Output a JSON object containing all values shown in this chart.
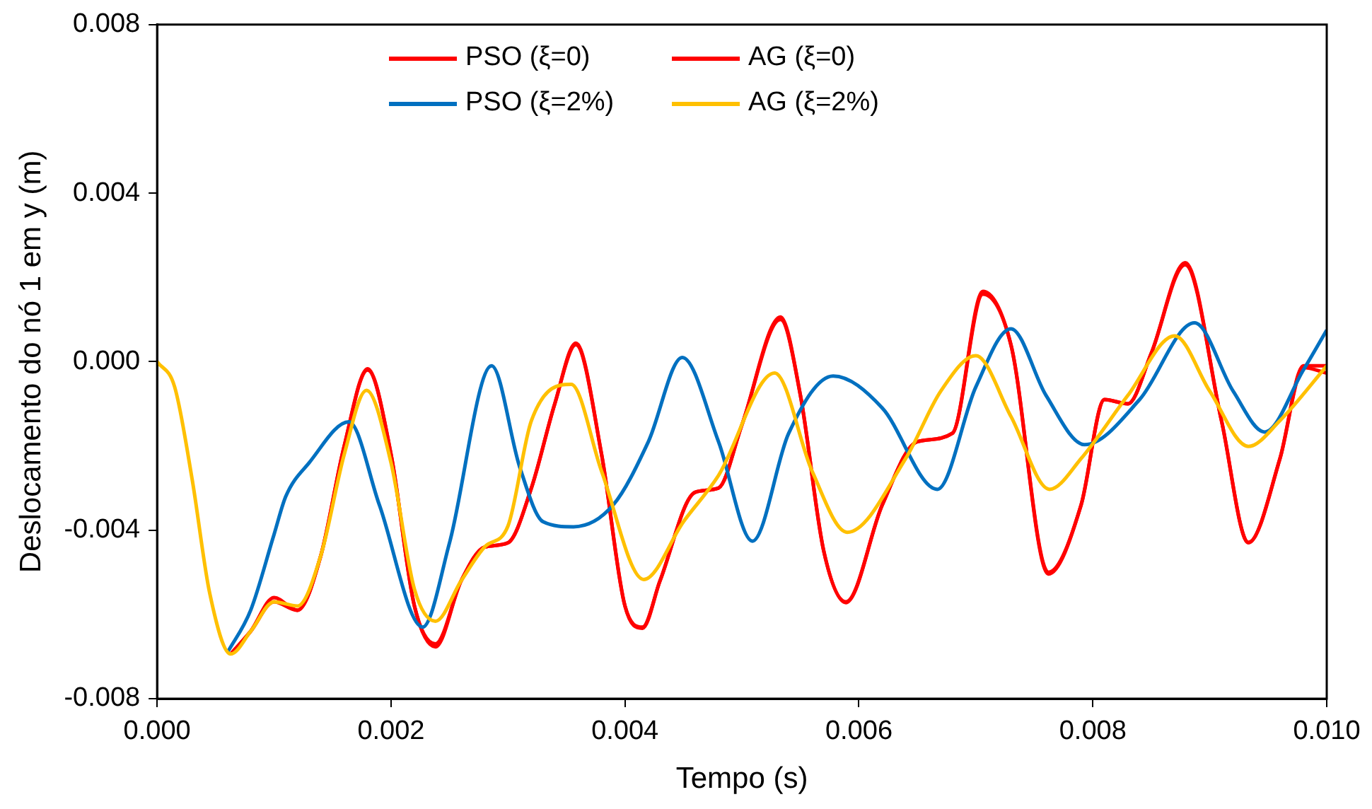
{
  "chart_data": {
    "type": "line",
    "xlabel": "Tempo (s)",
    "ylabel": "Deslocamento do nó 1 em y (m)",
    "xlim": [
      0,
      0.01
    ],
    "ylim": [
      -0.008,
      0.008
    ],
    "xticks": [
      {
        "value": 0,
        "label": "0.000"
      },
      {
        "value": 0.002,
        "label": "0.002"
      },
      {
        "value": 0.004,
        "label": "0.004"
      },
      {
        "value": 0.006,
        "label": "0.006"
      },
      {
        "value": 0.008,
        "label": "0.008"
      },
      {
        "value": 0.01,
        "label": "0.010"
      }
    ],
    "yticks": [
      {
        "value": -0.008,
        "label": "-0.008"
      },
      {
        "value": -0.004,
        "label": "-0.004"
      },
      {
        "value": 0,
        "label": "0.000"
      },
      {
        "value": 0.004,
        "label": "0.004"
      },
      {
        "value": 0.008,
        "label": "0.008"
      }
    ],
    "grid": false,
    "legend": "top",
    "marker": "none",
    "line_style": "solid",
    "series": [
      {
        "name": "PSO (ξ=0)",
        "color": "#ff0000",
        "x": [
          0.00063,
          0.0008,
          0.001,
          0.0012,
          0.0014,
          0.0016,
          0.0018,
          0.002,
          0.0022,
          0.00238,
          0.0026,
          0.0028,
          0.003,
          0.0032,
          0.0034,
          0.00358,
          0.0038,
          0.004,
          0.00415,
          0.0043,
          0.0046,
          0.0048,
          0.005,
          0.00533,
          0.0055,
          0.0057,
          0.00589,
          0.0062,
          0.0065,
          0.0068,
          0.00706,
          0.0073,
          0.00762,
          0.0079,
          0.0081,
          0.0083,
          0.0085,
          0.00879,
          0.0091,
          0.00933,
          0.0096,
          0.0098,
          0.01
        ],
        "values": [
          -0.00694,
          -0.0064,
          -0.0056,
          -0.0059,
          -0.0046,
          -0.002,
          -0.00017,
          -0.0022,
          -0.0058,
          -0.00677,
          -0.0052,
          -0.0044,
          -0.0043,
          -0.003,
          -0.001,
          0.00044,
          -0.0022,
          -0.0058,
          -0.00633,
          -0.0052,
          -0.0031,
          -0.003,
          -0.0015,
          0.00106,
          -0.0008,
          -0.0045,
          -0.00572,
          -0.0034,
          -0.0019,
          -0.0017,
          0.00167,
          0.0004,
          -0.00504,
          -0.0034,
          -0.0009,
          -0.001,
          0.0002,
          0.00235,
          -0.0014,
          -0.00429,
          -0.0023,
          -0.00014,
          -0.00027
        ]
      },
      {
        "name": "AG (ξ=0)",
        "color": "#ff0000",
        "x": [
          0.00063,
          0.0008,
          0.001,
          0.0012,
          0.0014,
          0.0016,
          0.0018,
          0.002,
          0.0022,
          0.00238,
          0.0026,
          0.0028,
          0.003,
          0.0032,
          0.0034,
          0.00358,
          0.0038,
          0.004,
          0.00415,
          0.0043,
          0.0046,
          0.0048,
          0.005,
          0.00533,
          0.0055,
          0.0057,
          0.00589,
          0.0062,
          0.0065,
          0.0068,
          0.00706,
          0.0073,
          0.00762,
          0.0079,
          0.0081,
          0.0083,
          0.0085,
          0.00879,
          0.0091,
          0.00933,
          0.0096,
          0.0098,
          0.01
        ],
        "values": [
          -0.00694,
          -0.0064,
          -0.0057,
          -0.0059,
          -0.0046,
          -0.002,
          -0.0002,
          -0.0022,
          -0.0058,
          -0.0067,
          -0.0052,
          -0.0044,
          -0.0043,
          -0.003,
          -0.001,
          0.0004,
          -0.0022,
          -0.0058,
          -0.0063,
          -0.0052,
          -0.0031,
          -0.003,
          -0.0015,
          0.001,
          -0.0008,
          -0.0045,
          -0.0057,
          -0.0034,
          -0.0019,
          -0.0017,
          0.0016,
          0.0004,
          -0.005,
          -0.0034,
          -0.0009,
          -0.001,
          0.0002,
          0.0023,
          -0.0014,
          -0.0043,
          -0.0023,
          -0.0001,
          -0.0001
        ]
      },
      {
        "name": "PSO (ξ=2%)",
        "color": "#0070c0",
        "x": [
          0.0006,
          0.0008,
          0.001,
          0.0011,
          0.0013,
          0.00164,
          0.0019,
          0.00227,
          0.0025,
          0.00286,
          0.0031,
          0.0033,
          0.00356,
          0.0039,
          0.0042,
          0.00449,
          0.0048,
          0.00509,
          0.0054,
          0.00578,
          0.0062,
          0.00667,
          0.007,
          0.0073,
          0.0076,
          0.00793,
          0.0084,
          0.00887,
          0.0092,
          0.00947,
          0.0098,
          0.01
        ],
        "values": [
          -0.00691,
          -0.0059,
          -0.0041,
          -0.0032,
          -0.0024,
          -0.00143,
          -0.0034,
          -0.0063,
          -0.0043,
          -0.0001,
          -0.0025,
          -0.0038,
          -0.00392,
          -0.0034,
          -0.0019,
          0.0001,
          -0.0019,
          -0.00426,
          -0.0017,
          -0.00034,
          -0.0011,
          -0.00303,
          -0.0006,
          0.00078,
          -0.0008,
          -0.00197,
          -0.0009,
          0.00092,
          -0.0007,
          -0.00167,
          -0.0002,
          0.00075
        ]
      },
      {
        "name": "AG (ξ=2%)",
        "color": "#ffc000",
        "x": [
          0,
          0.00015,
          0.0003,
          0.00045,
          0.00063,
          0.0008,
          0.001,
          0.0012,
          0.0014,
          0.0016,
          0.00179,
          0.002,
          0.0022,
          0.00238,
          0.0026,
          0.0028,
          0.003,
          0.0032,
          0.00354,
          0.0038,
          0.00416,
          0.0045,
          0.0048,
          0.00528,
          0.0056,
          0.0059,
          0.0064,
          0.0067,
          0.007,
          0.0073,
          0.00763,
          0.0079,
          0.0083,
          0.0087,
          0.009,
          0.00933,
          0.0096,
          0.01
        ],
        "values": [
          0,
          -0.0006,
          -0.0028,
          -0.0055,
          -0.00694,
          -0.0064,
          -0.0057,
          -0.0058,
          -0.0046,
          -0.0022,
          -0.00068,
          -0.0024,
          -0.0054,
          -0.00616,
          -0.0052,
          -0.0044,
          -0.0039,
          -0.0014,
          -0.00054,
          -0.0026,
          -0.00517,
          -0.0038,
          -0.0027,
          -0.00027,
          -0.0026,
          -0.00405,
          -0.0023,
          -0.0007,
          0.00014,
          -0.0013,
          -0.00303,
          -0.0023,
          -0.0008,
          0.00061,
          -0.0007,
          -0.00201,
          -0.0014,
          -0.0001
        ]
      }
    ]
  }
}
